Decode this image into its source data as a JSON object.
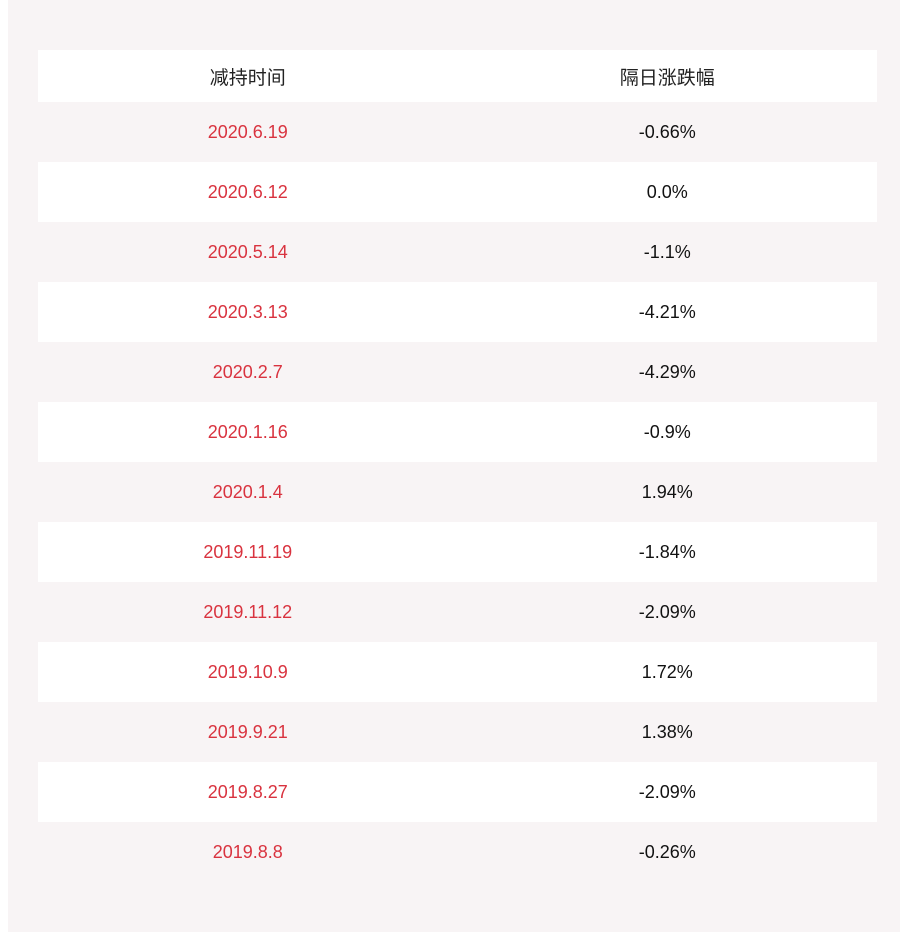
{
  "table": {
    "headers": [
      "减持时间",
      "隔日涨跌幅"
    ],
    "rows": [
      {
        "date": "2020.6.19",
        "change": "-0.66%"
      },
      {
        "date": "2020.6.12",
        "change": "0.0%"
      },
      {
        "date": "2020.5.14",
        "change": "-1.1%"
      },
      {
        "date": "2020.3.13",
        "change": "-4.21%"
      },
      {
        "date": "2020.2.7",
        "change": "-4.29%"
      },
      {
        "date": "2020.1.16",
        "change": "-0.9%"
      },
      {
        "date": "2020.1.4",
        "change": "1.94%"
      },
      {
        "date": "2019.11.19",
        "change": "-1.84%"
      },
      {
        "date": "2019.11.12",
        "change": "-2.09%"
      },
      {
        "date": "2019.10.9",
        "change": "1.72%"
      },
      {
        "date": "2019.9.21",
        "change": "1.38%"
      },
      {
        "date": "2019.8.27",
        "change": "-2.09%"
      },
      {
        "date": "2019.8.8",
        "change": "-0.26%"
      }
    ]
  },
  "colors": {
    "date_text": "#d9333f",
    "value_text": "#111111",
    "background": "#f8f4f5",
    "row_alt": "#ffffff"
  }
}
